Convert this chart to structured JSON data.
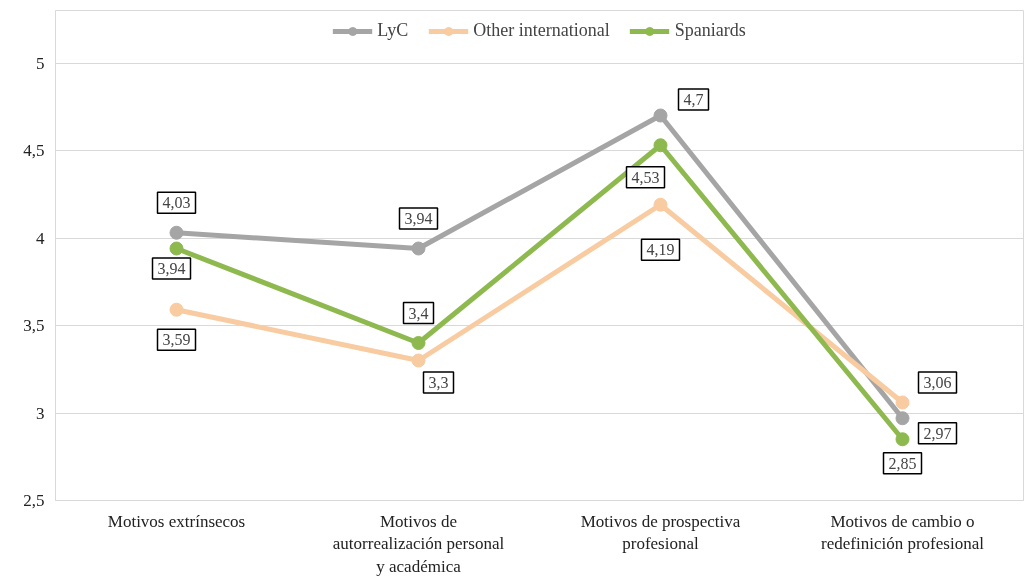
{
  "chart_data": {
    "type": "line",
    "categories": [
      "Motivos extrínsecos",
      "Motivos de autorrealización personal y académica",
      "Motivos de prospectiva profesional",
      "Motivos de cambio o redefinición profesional"
    ],
    "series": [
      {
        "name": "LyC",
        "color": "#a5a5a5",
        "values": [
          4.03,
          3.94,
          4.7,
          2.97
        ],
        "value_labels": [
          "4,03",
          "3,94",
          "4,7",
          "2,97"
        ]
      },
      {
        "name": "Other international",
        "color": "#f8cba0",
        "values": [
          3.59,
          3.3,
          4.19,
          3.06
        ],
        "value_labels": [
          "3,59",
          "3,3",
          "4,19",
          "3,06"
        ]
      },
      {
        "name": "Spaniards",
        "color": "#8db94f",
        "values": [
          3.94,
          3.4,
          4.53,
          2.85
        ],
        "value_labels": [
          "3,94",
          "3,4",
          "4,53",
          "2,85"
        ]
      }
    ],
    "ylim": [
      2.5,
      5.3
    ],
    "yticks": [
      {
        "value": 2.5,
        "label": "2,5"
      },
      3,
      {
        "value": 3.5,
        "label": "3,5"
      },
      4,
      {
        "value": 4.5,
        "label": "4,5"
      },
      5
    ],
    "grid": "y",
    "legend": "top",
    "marker": "circle",
    "line_style": "solid"
  }
}
